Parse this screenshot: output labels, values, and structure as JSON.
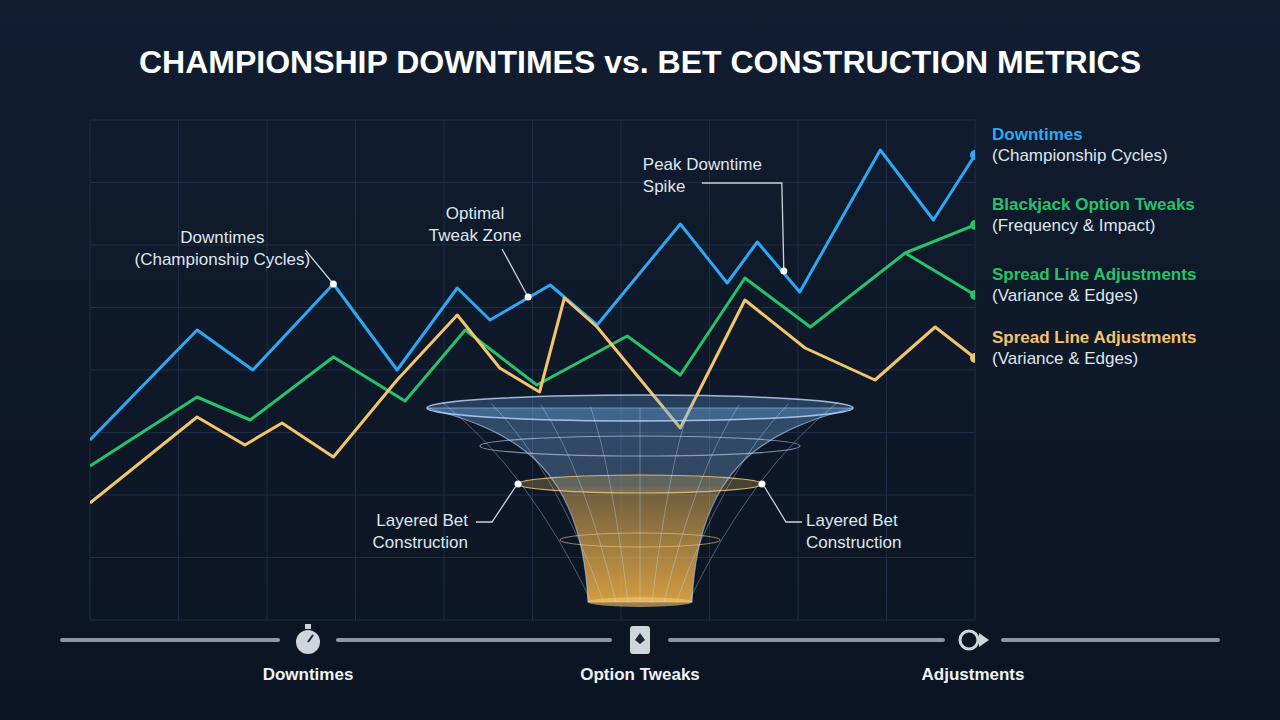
{
  "chart_data": {
    "type": "line",
    "title": "CHAMPIONSHIP DOWNTIMES vs. BET CONSTRUCTION METRICS",
    "xlim": [
      0,
      100
    ],
    "ylim": [
      0,
      100
    ],
    "xticks": [
      0,
      10,
      20,
      30,
      40,
      50,
      60,
      70,
      80,
      90,
      100
    ],
    "yticks": [
      0,
      12.5,
      25,
      37.5,
      50,
      62.5,
      75,
      87.5,
      100
    ],
    "grid": true,
    "tick_labels": false,
    "legend": "right",
    "series": [
      {
        "name": "Downtimes",
        "description": "(Championship Cycles)",
        "color": "#2ea8f2",
        "x": [
          0,
          12.1,
          18.4,
          27.5,
          34.7,
          41.5,
          45.2,
          52,
          57.3,
          66.7,
          72,
          75.4,
          80.2,
          89.3,
          95.3,
          100
        ],
        "values": [
          36,
          58,
          50,
          67.2,
          50,
          66.4,
          60,
          67,
          59,
          79.2,
          67.4,
          75.6,
          65.6,
          94,
          80,
          93
        ]
      },
      {
        "name": "Blackjack Option Tweaks",
        "description": "(Frequency & Impact)",
        "color": "#27c26a",
        "x": [
          0,
          12.1,
          18.1,
          27.5,
          35.6,
          42.4,
          50.5,
          60.7,
          66.7,
          74,
          81.4,
          92.1,
          100
        ],
        "values": [
          30.8,
          44.6,
          40,
          52.6,
          43.8,
          58,
          47,
          56.8,
          49,
          68.4,
          58.6,
          73.4,
          79
        ]
      },
      {
        "name": "Spread Line Adjustments",
        "description": "(Variance & Edges)",
        "color": "#27c26a",
        "x": [
          92.1,
          100
        ],
        "values": [
          73.4,
          65
        ]
      },
      {
        "name": "Spread Line Adjustments",
        "description": "(Variance & Edges)",
        "color": "#f2c46d",
        "x": [
          0,
          12.1,
          17.5,
          21.7,
          27.5,
          34.7,
          41.5,
          46.3,
          50.8,
          53.6,
          57.3,
          66.7,
          74,
          80.8,
          88.7,
          95.5,
          100
        ],
        "values": [
          23.4,
          40.6,
          35,
          39.4,
          32.6,
          48,
          61,
          50.4,
          45.6,
          64.4,
          58.6,
          38.4,
          64,
          54.4,
          48,
          58.6,
          52.4
        ]
      }
    ],
    "annotations": [
      {
        "lines": [
          "Downtimes",
          "(Championship Cycles)"
        ],
        "x": 27.5,
        "y": 67.2
      },
      {
        "lines": [
          "Optimal",
          "Tweak Zone"
        ],
        "x": 49.5,
        "y": 64.6
      },
      {
        "lines": [
          "Peak Downtime",
          "Spike"
        ],
        "x": 78.4,
        "y": 69.8
      }
    ],
    "funnel_labels": [
      [
        "Layered Bet",
        "Construction"
      ],
      [
        "Layered Bet",
        "Construction"
      ]
    ],
    "timeline": [
      "Downtimes",
      "Option Tweaks",
      "Adjustments"
    ]
  }
}
